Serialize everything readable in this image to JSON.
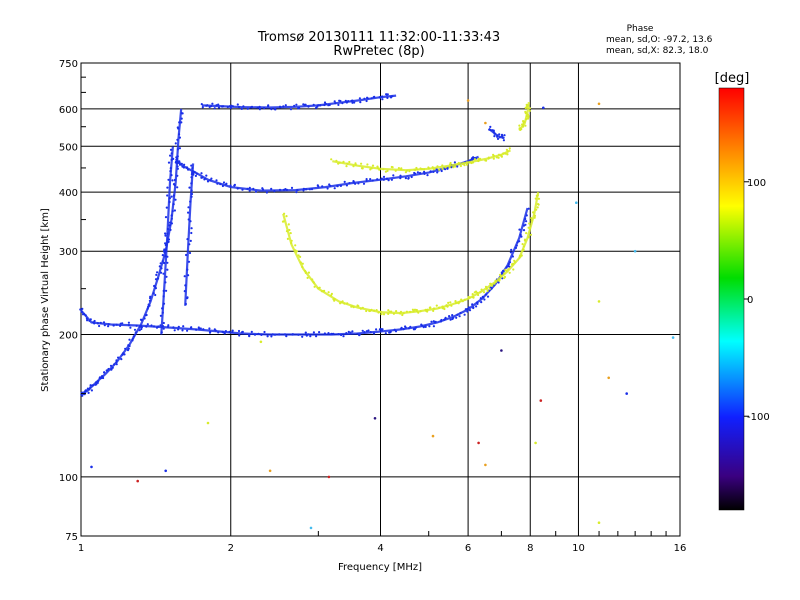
{
  "chart_data": {
    "type": "scatter",
    "title": "Tromsø 20130111 11:32:00-11:33:43",
    "subtitle": "RwPretec (8p)",
    "xlabel": "Frequency [MHz]",
    "ylabel": "Stationary phase Virtual Height [km]",
    "x_scale": "log",
    "y_scale": "log",
    "xlim": [
      1,
      16
    ],
    "ylim": [
      75,
      750
    ],
    "x_ticks": [
      1,
      2,
      4,
      6,
      8,
      10,
      16
    ],
    "x_tick_labels": [
      "1",
      "2",
      "4",
      "6",
      "8",
      "10",
      "16"
    ],
    "y_ticks": [
      75,
      100,
      200,
      300,
      400,
      500,
      600,
      750
    ],
    "y_tick_labels": [
      "75",
      "100",
      "200",
      "300",
      "400",
      "500",
      "600",
      "750"
    ],
    "grid": true,
    "phase_stats": {
      "heading": "Phase",
      "line_o": "mean, sd,O: -97.2, 13.6",
      "line_x": "mean, sd,X:  82.3, 18.0"
    },
    "colorbar": {
      "label": "[deg]",
      "range": [
        -180,
        180
      ],
      "ticks": [
        100,
        0,
        -100
      ],
      "tick_labels": [
        "100",
        "0",
        "-100"
      ]
    },
    "colors": {
      "o_mode": "#1a2fe8",
      "x_mode": "#d8ec2a"
    },
    "series": [
      {
        "mode": "O",
        "color": "#1a2fe8",
        "segments": [
          [
            [
              1.0,
              150
            ],
            [
              1.03,
              152
            ],
            [
              1.07,
              158
            ],
            [
              1.12,
              165
            ],
            [
              1.18,
              175
            ],
            [
              1.25,
              190
            ],
            [
              1.32,
              210
            ],
            [
              1.38,
              235
            ],
            [
              1.43,
              265
            ],
            [
              1.48,
              300
            ],
            [
              1.52,
              350
            ],
            [
              1.55,
              420
            ],
            [
              1.57,
              520
            ],
            [
              1.59,
              600
            ]
          ],
          [
            [
              1.0,
              225
            ],
            [
              1.05,
              212
            ],
            [
              1.15,
              210
            ],
            [
              1.3,
              209
            ],
            [
              1.5,
              207
            ],
            [
              1.7,
              205
            ],
            [
              1.9,
              203
            ],
            [
              2.1,
              201
            ],
            [
              2.4,
              200
            ],
            [
              2.8,
              200
            ],
            [
              3.2,
              200
            ],
            [
              3.6,
              201
            ],
            [
              4.0,
              203
            ],
            [
              4.4,
              205
            ],
            [
              4.8,
              208
            ],
            [
              5.2,
              212
            ],
            [
              5.6,
              218
            ],
            [
              6.0,
              226
            ],
            [
              6.4,
              238
            ],
            [
              6.8,
              255
            ],
            [
              7.2,
              280
            ],
            [
              7.6,
              320
            ],
            [
              7.9,
              370
            ]
          ],
          [
            [
              1.55,
              470
            ],
            [
              1.6,
              455
            ],
            [
              1.7,
              440
            ],
            [
              1.8,
              425
            ],
            [
              2.0,
              410
            ],
            [
              2.3,
              403
            ],
            [
              2.7,
              404
            ],
            [
              3.1,
              410
            ],
            [
              3.5,
              418
            ],
            [
              4.0,
              425
            ],
            [
              4.5,
              432
            ],
            [
              5.0,
              440
            ],
            [
              5.5,
              452
            ],
            [
              6.0,
              465
            ],
            [
              6.3,
              475
            ]
          ],
          [
            [
              1.75,
              610
            ],
            [
              1.9,
              608
            ],
            [
              2.1,
              605
            ],
            [
              2.4,
              604
            ],
            [
              2.7,
              606
            ],
            [
              3.0,
              610
            ],
            [
              3.3,
              618
            ],
            [
              3.6,
              625
            ],
            [
              4.0,
              635
            ],
            [
              4.3,
              640
            ]
          ],
          [
            [
              6.6,
              545
            ],
            [
              6.9,
              525
            ],
            [
              7.1,
              520
            ]
          ],
          [
            [
              1.45,
              200
            ],
            [
              1.47,
              250
            ],
            [
              1.49,
              320
            ],
            [
              1.51,
              420
            ],
            [
              1.53,
              500
            ]
          ],
          [
            [
              1.62,
              230
            ],
            [
              1.64,
              300
            ],
            [
              1.66,
              380
            ],
            [
              1.68,
              460
            ]
          ]
        ]
      },
      {
        "mode": "X",
        "color": "#d8ec2a",
        "segments": [
          [
            [
              2.55,
              360
            ],
            [
              2.65,
              310
            ],
            [
              2.8,
              275
            ],
            [
              3.0,
              250
            ],
            [
              3.3,
              235
            ],
            [
              3.6,
              228
            ],
            [
              4.0,
              223
            ],
            [
              4.4,
              222
            ],
            [
              4.8,
              224
            ],
            [
              5.2,
              227
            ],
            [
              5.6,
              232
            ],
            [
              6.0,
              238
            ],
            [
              6.4,
              247
            ],
            [
              6.8,
              258
            ],
            [
              7.2,
              272
            ],
            [
              7.6,
              290
            ],
            [
              7.9,
              320
            ],
            [
              8.15,
              360
            ],
            [
              8.3,
              400
            ]
          ],
          [
            [
              3.2,
              465
            ],
            [
              3.6,
              455
            ],
            [
              4.0,
              448
            ],
            [
              4.5,
              445
            ],
            [
              5.0,
              448
            ],
            [
              5.5,
              455
            ],
            [
              6.0,
              462
            ],
            [
              6.5,
              470
            ],
            [
              7.0,
              480
            ],
            [
              7.3,
              490
            ]
          ],
          [
            [
              7.6,
              540
            ],
            [
              7.8,
              560
            ],
            [
              7.9,
              590
            ],
            [
              7.95,
              620
            ]
          ]
        ]
      }
    ],
    "scattered_points": [
      {
        "x": 1.3,
        "y": 98,
        "color": "#cc2222"
      },
      {
        "x": 1.05,
        "y": 105,
        "color": "#1a2fe8"
      },
      {
        "x": 1.48,
        "y": 103,
        "color": "#1a2fe8"
      },
      {
        "x": 2.4,
        "y": 103,
        "color": "#e9a020"
      },
      {
        "x": 2.9,
        "y": 78,
        "color": "#44bbee"
      },
      {
        "x": 3.15,
        "y": 100,
        "color": "#cc2222"
      },
      {
        "x": 3.9,
        "y": 133,
        "color": "#2a1480"
      },
      {
        "x": 5.1,
        "y": 122,
        "color": "#e9a020"
      },
      {
        "x": 6.3,
        "y": 118,
        "color": "#cc2222"
      },
      {
        "x": 6.5,
        "y": 106,
        "color": "#e9a020"
      },
      {
        "x": 7.0,
        "y": 185,
        "color": "#2a1480"
      },
      {
        "x": 8.2,
        "y": 118,
        "color": "#d8ec2a"
      },
      {
        "x": 8.4,
        "y": 145,
        "color": "#cc2222"
      },
      {
        "x": 11.0,
        "y": 80,
        "color": "#d8ec2a"
      },
      {
        "x": 11.0,
        "y": 235,
        "color": "#d8ec2a"
      },
      {
        "x": 11.5,
        "y": 162,
        "color": "#e9a020"
      },
      {
        "x": 12.5,
        "y": 150,
        "color": "#1a2fe8"
      },
      {
        "x": 13.0,
        "y": 300,
        "color": "#44bbee"
      },
      {
        "x": 15.5,
        "y": 197,
        "color": "#44bbee"
      },
      {
        "x": 11.0,
        "y": 615,
        "color": "#e9a020"
      },
      {
        "x": 8.5,
        "y": 603,
        "color": "#1a2fe8"
      },
      {
        "x": 9.9,
        "y": 380,
        "color": "#44bbee"
      },
      {
        "x": 6.0,
        "y": 625,
        "color": "#e9a020"
      },
      {
        "x": 2.3,
        "y": 193,
        "color": "#d8ec2a"
      },
      {
        "x": 1.8,
        "y": 130,
        "color": "#d8ec2a"
      },
      {
        "x": 6.5,
        "y": 560,
        "color": "#e9a020"
      }
    ]
  }
}
